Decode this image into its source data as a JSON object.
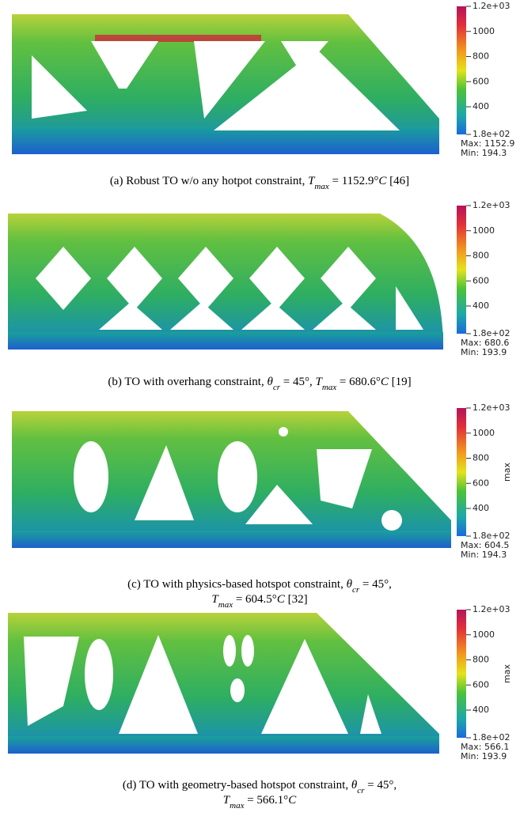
{
  "panels": [
    {
      "colorbar": {
        "ticks": [
          "1.2e+03",
          "1000",
          "800",
          "600",
          "400",
          "1.8e+02"
        ]
      },
      "max": "Max: 1152.9",
      "min": "Min: 194.3",
      "caption": [
        [
          {
            "text": "(a) Robust TO w/o any hotpot constraint, "
          },
          {
            "italic": "T"
          },
          {
            "sub": "max"
          },
          {
            "text": " = 1152.9°"
          },
          {
            "italic": "C"
          },
          {
            "text": " [46]"
          }
        ]
      ]
    },
    {
      "colorbar": {
        "ticks": [
          "1.2e+03",
          "1000",
          "800",
          "600",
          "400",
          "1.8e+02"
        ]
      },
      "max": "Max: 680.6",
      "min": "Min: 193.9",
      "caption": [
        [
          {
            "text": "(b) TO with overhang constraint, "
          },
          {
            "italic": "θ"
          },
          {
            "sub": "cr"
          },
          {
            "text": " = 45°, "
          },
          {
            "italic": "T"
          },
          {
            "sub": "max"
          },
          {
            "text": " = 680.6°"
          },
          {
            "italic": "C"
          },
          {
            "text": " [19]"
          }
        ]
      ]
    },
    {
      "colorbar": {
        "ticks": [
          "1.2e+03",
          "1000",
          "800",
          "600",
          "400",
          "1.8e+02"
        ],
        "title": "max"
      },
      "max": "Max: 604.5",
      "min": "Min: 194.3",
      "caption": [
        [
          {
            "text": "(c) TO with physics-based hotspot constraint, "
          },
          {
            "italic": "θ"
          },
          {
            "sub": "cr"
          },
          {
            "text": " = 45°,"
          }
        ],
        [
          {
            "italic": "T"
          },
          {
            "sub": "max"
          },
          {
            "text": " = 604.5°"
          },
          {
            "italic": "C"
          },
          {
            "text": " [32]"
          }
        ]
      ]
    },
    {
      "colorbar": {
        "ticks": [
          "1.2e+03",
          "1000",
          "800",
          "600",
          "400",
          "1.8e+02"
        ],
        "title": "max"
      },
      "max": "Max: 566.1",
      "min": "Min: 193.9",
      "caption": [
        [
          {
            "text": "(d) TO with geometry-based hotspot constraint, "
          },
          {
            "italic": "θ"
          },
          {
            "sub": "cr"
          },
          {
            "text": " = 45°,"
          }
        ],
        [
          {
            "italic": "T"
          },
          {
            "sub": "max"
          },
          {
            "text": " = 566.1°"
          },
          {
            "italic": "C"
          }
        ]
      ]
    }
  ]
}
